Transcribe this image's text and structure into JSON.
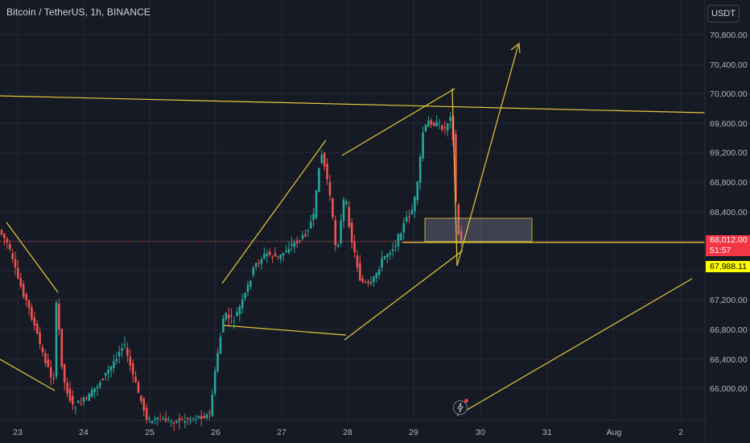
{
  "header": {
    "title": "Bitcoin / TetherUS, 1h, BINANCE",
    "currency": "USDT"
  },
  "price_axis": {
    "labels": [
      "70,800.00",
      "70,400.00",
      "70,000.00",
      "69,600.00",
      "69,200.00",
      "68,800.00",
      "68,400.00",
      "67,200.00",
      "66,800.00",
      "66,400.00",
      "66,000.00"
    ]
  },
  "time_axis": {
    "labels": [
      "23",
      "24",
      "25",
      "26",
      "27",
      "28",
      "29",
      "30",
      "31",
      "Aug",
      "2"
    ]
  },
  "current_price": {
    "price": "68,012.00",
    "countdown": "51:57"
  },
  "level_price": "67,988.11",
  "colors": {
    "up": "#26a69a",
    "down": "#ef5350",
    "drawing": "#e6c93b",
    "background": "#161a25"
  },
  "icons": {
    "flash": "lightning-icon"
  }
}
